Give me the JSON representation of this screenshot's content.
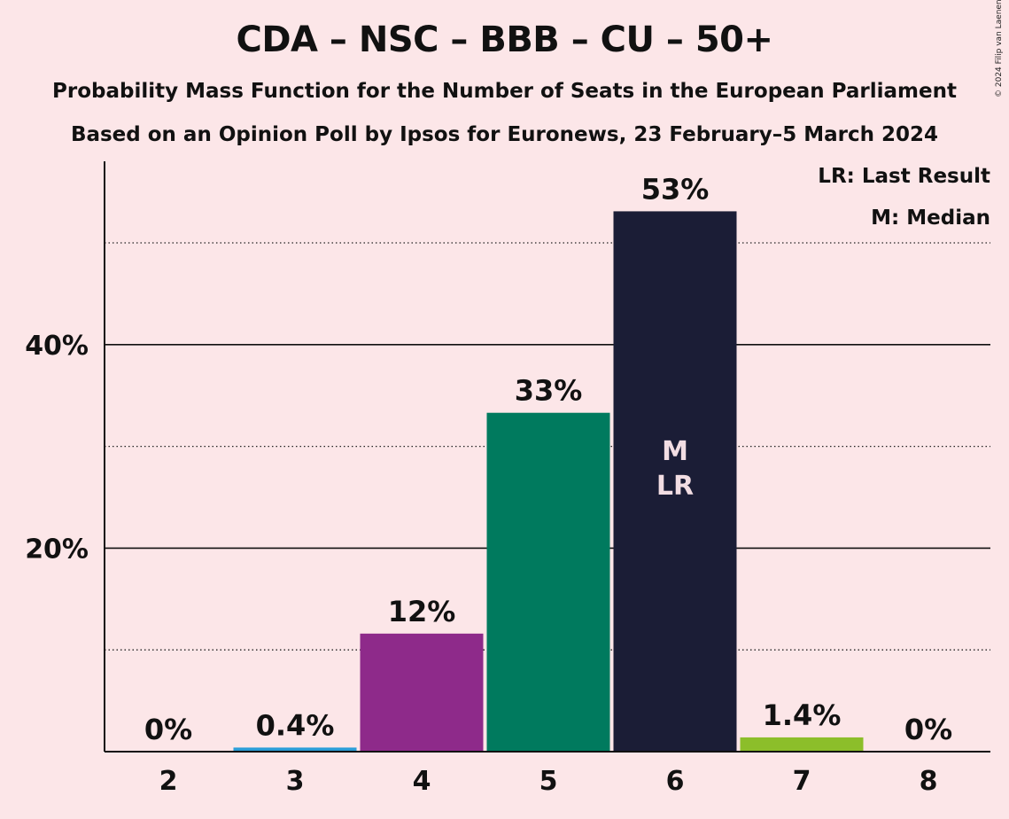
{
  "header": {
    "title": "CDA – NSC – BBB – CU – 50+",
    "subtitle1": "Probability Mass Function for the Number of Seats in the European Parliament",
    "subtitle2": "Based on an Opinion Poll by Ipsos for Euronews, 23 February–5 March 2024",
    "copyright": "© 2024 Filip van Laenen"
  },
  "legend": {
    "last_result": "LR: Last Result",
    "median": "M: Median"
  },
  "chart_data": {
    "type": "bar",
    "categories": [
      "2",
      "3",
      "4",
      "5",
      "6",
      "7",
      "8"
    ],
    "values": [
      0,
      0.4,
      11.6,
      33.3,
      53.1,
      1.4,
      0
    ],
    "data_labels": [
      "0%",
      "0.4%",
      "12%",
      "33%",
      "53%",
      "1.4%",
      "0%"
    ],
    "colors": [
      "#2a9ed8",
      "#2a9ed8",
      "#8e2a8a",
      "#007a5e",
      "#1b1d36",
      "#8cbe2a",
      "#2a9ed8"
    ],
    "ylim": [
      0,
      58
    ],
    "yticks": [
      20,
      40
    ],
    "ytick_labels": [
      "20%",
      "40%"
    ],
    "minor_gridlines": [
      10,
      30,
      50
    ],
    "bar_annotations": [
      {
        "category": "6",
        "lines": [
          "M",
          "LR"
        ],
        "color": "#f2dde3"
      }
    ],
    "xlabel": "",
    "ylabel": "",
    "grid": true
  }
}
